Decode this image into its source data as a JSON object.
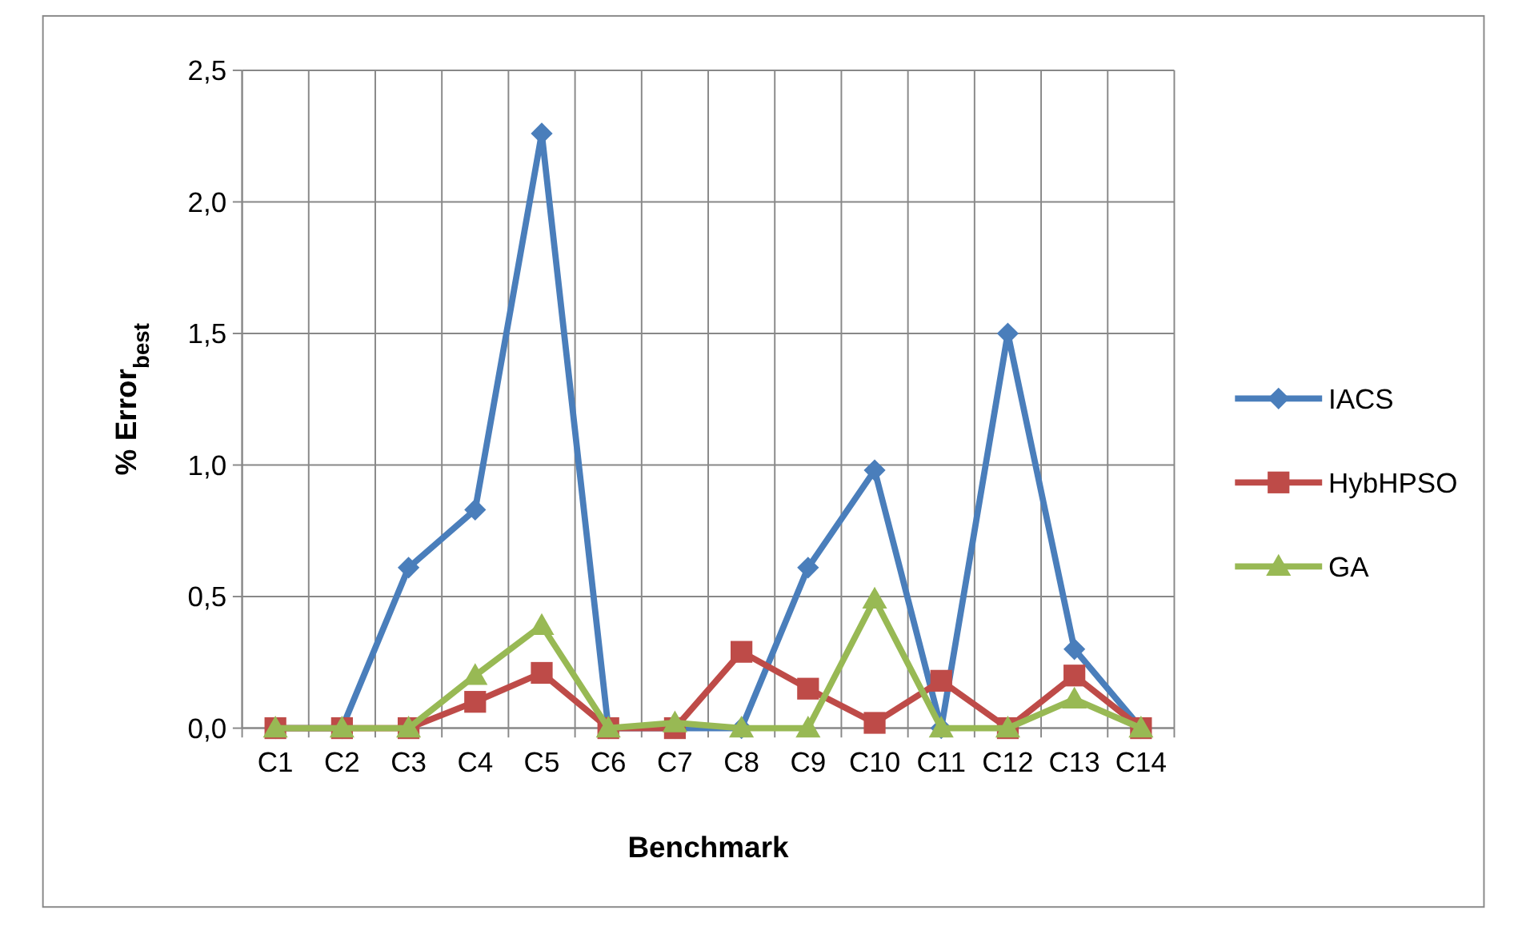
{
  "chart_data": {
    "type": "line",
    "xlabel": "Benchmark",
    "ylabel": "% Error$_{best}$",
    "categories": [
      "C1",
      "C2",
      "C3",
      "C4",
      "C5",
      "C6",
      "C7",
      "C8",
      "C9",
      "C10",
      "C11",
      "C12",
      "C13",
      "C14"
    ],
    "ylim": [
      0,
      2.5
    ],
    "yticks": [
      {
        "value": 0,
        "label": "0,0"
      },
      {
        "value": 0.5,
        "label": "0,5"
      },
      {
        "value": 1,
        "label": "1,0"
      },
      {
        "value": 1.5,
        "label": "1,5"
      },
      {
        "value": 2,
        "label": "2,0"
      },
      {
        "value": 2.5,
        "label": "2,5"
      }
    ],
    "grid": true,
    "legend": "right",
    "series": [
      {
        "name": "IACS",
        "color": "#4a7ebb",
        "marker": "diamond",
        "values": [
          0,
          0,
          0.61,
          0.83,
          2.26,
          0,
          0,
          0,
          0.61,
          0.98,
          0,
          1.5,
          0.3,
          0
        ]
      },
      {
        "name": "HybHPSO",
        "color": "#be4b48",
        "marker": "square",
        "values": [
          0,
          0,
          0,
          0.1,
          0.21,
          0,
          0,
          0.29,
          0.15,
          0.02,
          0.18,
          0,
          0.2,
          0
        ]
      },
      {
        "name": "GA",
        "color": "#98b954",
        "marker": "triangle",
        "values": [
          0,
          0,
          0,
          0.2,
          0.39,
          0,
          0.02,
          0,
          0,
          0.49,
          0,
          0,
          0.11,
          0
        ]
      }
    ]
  }
}
